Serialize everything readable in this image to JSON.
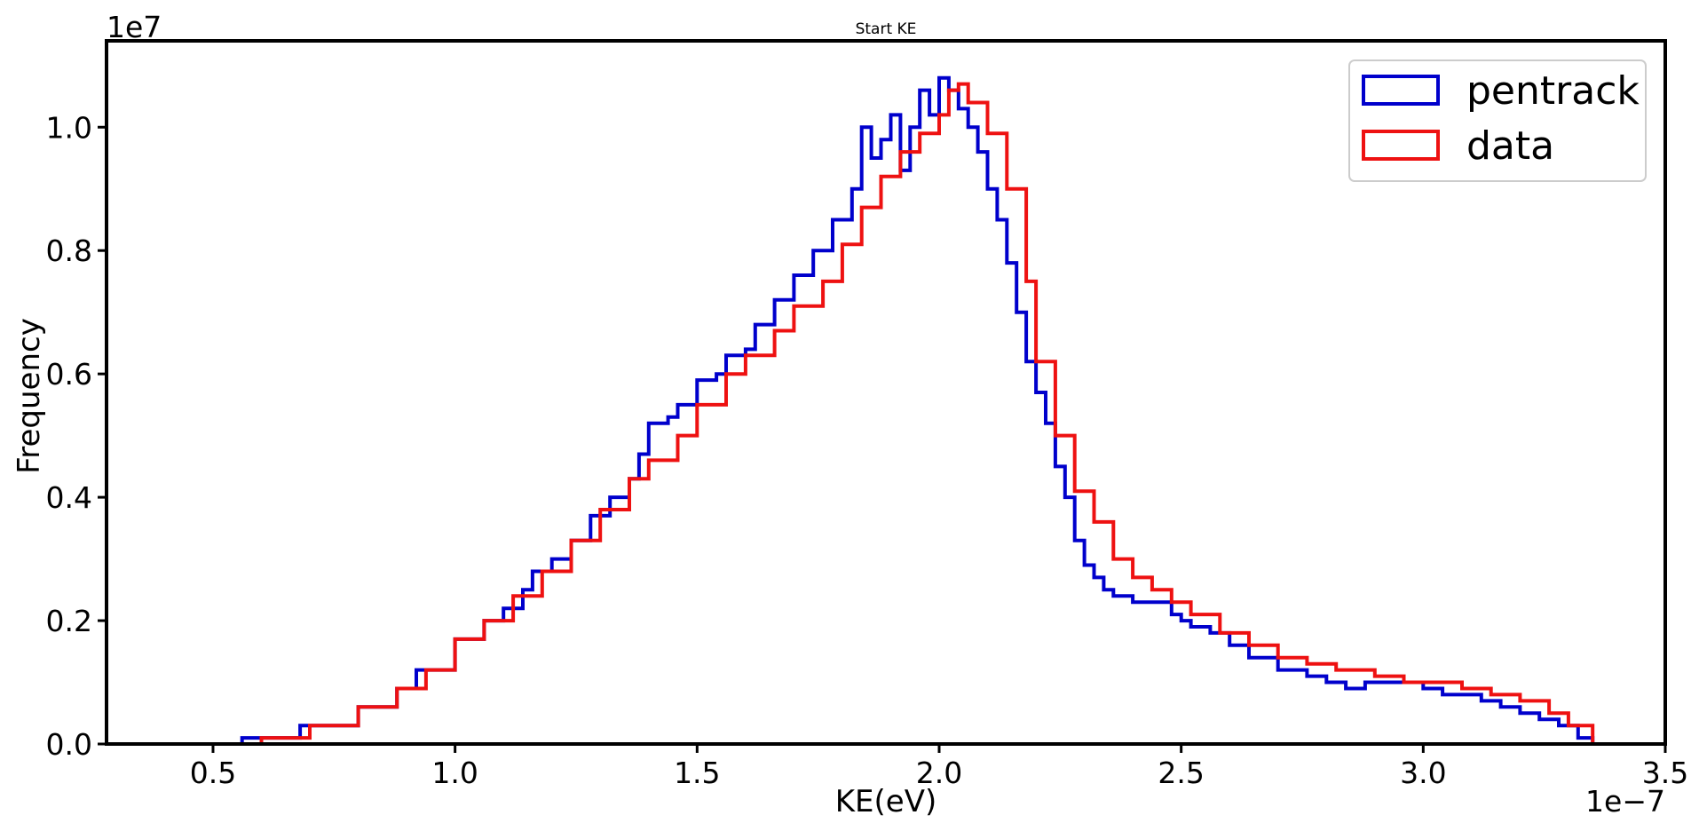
{
  "chart_data": {
    "type": "histogram",
    "title": "Start KE",
    "xlabel": "KE(eV)",
    "ylabel": "Frequency",
    "x_offset_label": "1e−7",
    "y_offset_label": "1e7",
    "x_scale": 1e-07,
    "y_scale": 10000000.0,
    "xlim": [
      0.28,
      3.5
    ],
    "ylim": [
      0.0,
      1.14
    ],
    "xticks": [
      0.5,
      1.0,
      1.5,
      2.0,
      2.5,
      3.0,
      3.5
    ],
    "xtick_labels": [
      "0.5",
      "1.0",
      "1.5",
      "2.0",
      "2.5",
      "3.0",
      "3.5"
    ],
    "yticks": [
      0.0,
      0.2,
      0.4,
      0.6,
      0.8,
      1.0
    ],
    "ytick_labels": [
      "0.0",
      "0.2",
      "0.4",
      "0.6",
      "0.8",
      "1.0"
    ],
    "legend_position": "top-right",
    "grid": false,
    "series": [
      {
        "name": "pentrack",
        "color": "#0000cc",
        "x": [
          0.56,
          0.68,
          0.8,
          0.88,
          0.92,
          1.0,
          1.06,
          1.1,
          1.14,
          1.16,
          1.2,
          1.24,
          1.28,
          1.32,
          1.36,
          1.38,
          1.4,
          1.44,
          1.46,
          1.5,
          1.54,
          1.56,
          1.6,
          1.62,
          1.66,
          1.7,
          1.74,
          1.78,
          1.82,
          1.84,
          1.86,
          1.88,
          1.9,
          1.92,
          1.94,
          1.96,
          1.98,
          2.0,
          2.02,
          2.04,
          2.06,
          2.08,
          2.1,
          2.12,
          2.14,
          2.16,
          2.18,
          2.2,
          2.22,
          2.24,
          2.26,
          2.28,
          2.3,
          2.32,
          2.34,
          2.36,
          2.4,
          2.44,
          2.48,
          2.5,
          2.52,
          2.56,
          2.6,
          2.64,
          2.7,
          2.76,
          2.8,
          2.84,
          2.88,
          2.92,
          2.96,
          3.0,
          3.04,
          3.08,
          3.12,
          3.16,
          3.2,
          3.24,
          3.28,
          3.32,
          3.35
        ],
        "y": [
          0.01,
          0.03,
          0.06,
          0.09,
          0.12,
          0.17,
          0.2,
          0.22,
          0.25,
          0.28,
          0.3,
          0.33,
          0.37,
          0.4,
          0.43,
          0.47,
          0.52,
          0.53,
          0.55,
          0.59,
          0.6,
          0.63,
          0.64,
          0.68,
          0.72,
          0.76,
          0.8,
          0.85,
          0.9,
          1.0,
          0.95,
          0.98,
          1.02,
          0.93,
          1.0,
          1.06,
          1.02,
          1.08,
          1.06,
          1.03,
          1.0,
          0.96,
          0.9,
          0.85,
          0.78,
          0.7,
          0.62,
          0.57,
          0.52,
          0.45,
          0.4,
          0.33,
          0.29,
          0.27,
          0.25,
          0.24,
          0.23,
          0.23,
          0.21,
          0.2,
          0.19,
          0.18,
          0.16,
          0.14,
          0.12,
          0.11,
          0.1,
          0.09,
          0.1,
          0.1,
          0.1,
          0.09,
          0.08,
          0.08,
          0.07,
          0.06,
          0.05,
          0.04,
          0.03,
          0.01,
          0.0
        ]
      },
      {
        "name": "data",
        "color": "#ee1111",
        "x": [
          0.42,
          0.5,
          0.6,
          0.7,
          0.8,
          0.88,
          0.94,
          1.0,
          1.06,
          1.12,
          1.18,
          1.24,
          1.3,
          1.36,
          1.4,
          1.46,
          1.5,
          1.56,
          1.6,
          1.66,
          1.7,
          1.76,
          1.8,
          1.84,
          1.88,
          1.92,
          1.96,
          2.0,
          2.02,
          2.04,
          2.06,
          2.1,
          2.14,
          2.18,
          2.2,
          2.24,
          2.28,
          2.32,
          2.36,
          2.4,
          2.44,
          2.48,
          2.52,
          2.58,
          2.64,
          2.7,
          2.76,
          2.82,
          2.9,
          2.96,
          3.02,
          3.08,
          3.14,
          3.2,
          3.26,
          3.3,
          3.35
        ],
        "y": [
          0.0,
          0.0,
          0.01,
          0.03,
          0.06,
          0.09,
          0.12,
          0.17,
          0.2,
          0.24,
          0.28,
          0.33,
          0.38,
          0.43,
          0.46,
          0.5,
          0.55,
          0.6,
          0.63,
          0.67,
          0.71,
          0.75,
          0.81,
          0.87,
          0.92,
          0.96,
          0.99,
          1.02,
          1.06,
          1.07,
          1.04,
          0.99,
          0.9,
          0.75,
          0.62,
          0.5,
          0.41,
          0.36,
          0.3,
          0.27,
          0.25,
          0.23,
          0.21,
          0.18,
          0.16,
          0.14,
          0.13,
          0.12,
          0.11,
          0.1,
          0.1,
          0.09,
          0.08,
          0.07,
          0.05,
          0.03,
          0.0
        ]
      }
    ]
  }
}
